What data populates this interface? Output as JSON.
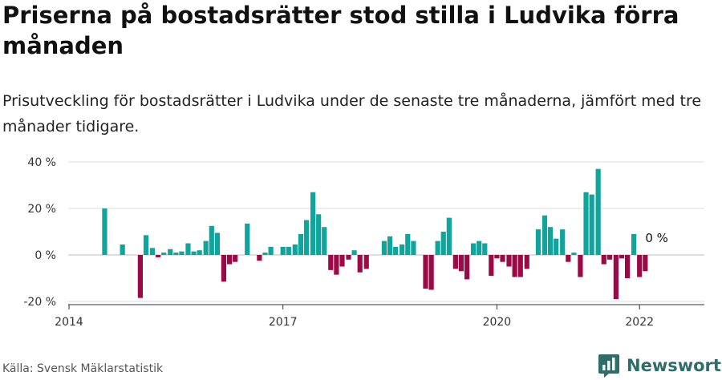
{
  "title": "Priserna på bostadsrätter stod stilla i Ludvika förra månaden",
  "subtitle": "Prisutveckling för bostadsrätter i Ludvika under de senaste tre månaderna, jämfört med tre månader tidigare.",
  "source": "Källa: Svensk Mäklarstatistik",
  "brand": "Newsworthy",
  "colors": {
    "positive": "#0fa49c",
    "negative": "#9b0a47",
    "brand": "#2f6d6a"
  },
  "chart_data": {
    "type": "bar",
    "unit": "%",
    "ylim": [
      -20,
      40
    ],
    "yticks": [
      {
        "value": 40,
        "label": "40 %"
      },
      {
        "value": 20,
        "label": "20 %"
      },
      {
        "value": 0,
        "label": "0 %"
      },
      {
        "value": -20,
        "label": "-20 %"
      }
    ],
    "xticks": [
      {
        "value": 2014.0,
        "label": "2014"
      },
      {
        "value": 2017.0,
        "label": "2017"
      },
      {
        "value": 2020.0,
        "label": "2020"
      },
      {
        "value": 2022.0,
        "label": "2022"
      }
    ],
    "grid": true,
    "last_value_label": "0 %",
    "points": [
      [
        2014.5,
        20
      ],
      [
        2014.58,
        0
      ],
      [
        2014.67,
        0
      ],
      [
        2014.75,
        4.5
      ],
      [
        2014.83,
        0
      ],
      [
        2014.92,
        0
      ],
      [
        2015.0,
        -18.5
      ],
      [
        2015.08,
        8.5
      ],
      [
        2015.17,
        3
      ],
      [
        2015.25,
        -1
      ],
      [
        2015.33,
        1
      ],
      [
        2015.42,
        2.5
      ],
      [
        2015.5,
        1
      ],
      [
        2015.58,
        1.5
      ],
      [
        2015.67,
        5
      ],
      [
        2015.75,
        1.5
      ],
      [
        2015.83,
        2
      ],
      [
        2015.92,
        6
      ],
      [
        2016.0,
        12.5
      ],
      [
        2016.08,
        9.5
      ],
      [
        2016.17,
        -11.5
      ],
      [
        2016.25,
        -4
      ],
      [
        2016.33,
        -3
      ],
      [
        2016.42,
        0
      ],
      [
        2016.5,
        13.5
      ],
      [
        2016.58,
        0
      ],
      [
        2016.67,
        -2.5
      ],
      [
        2016.75,
        1
      ],
      [
        2016.83,
        3.5
      ],
      [
        2016.92,
        0
      ],
      [
        2017.0,
        3.5
      ],
      [
        2017.08,
        3.5
      ],
      [
        2017.17,
        4.5
      ],
      [
        2017.25,
        9
      ],
      [
        2017.33,
        15
      ],
      [
        2017.42,
        27
      ],
      [
        2017.5,
        17.5
      ],
      [
        2017.58,
        12
      ],
      [
        2017.67,
        -6.5
      ],
      [
        2017.75,
        -8.5
      ],
      [
        2017.83,
        -5
      ],
      [
        2017.92,
        -2
      ],
      [
        2018.0,
        2
      ],
      [
        2018.08,
        -7.5
      ],
      [
        2018.17,
        -6
      ],
      [
        2018.25,
        0
      ],
      [
        2018.33,
        0
      ],
      [
        2018.42,
        6
      ],
      [
        2018.5,
        8
      ],
      [
        2018.58,
        3.5
      ],
      [
        2018.67,
        4.5
      ],
      [
        2018.75,
        9
      ],
      [
        2018.83,
        6
      ],
      [
        2018.92,
        0
      ],
      [
        2019.0,
        -14.5
      ],
      [
        2019.08,
        -15
      ],
      [
        2019.17,
        6
      ],
      [
        2019.25,
        10
      ],
      [
        2019.33,
        16
      ],
      [
        2019.42,
        -6
      ],
      [
        2019.5,
        -7
      ],
      [
        2019.58,
        -10.5
      ],
      [
        2019.67,
        5
      ],
      [
        2019.75,
        6
      ],
      [
        2019.83,
        5
      ],
      [
        2019.92,
        -9
      ],
      [
        2020.0,
        -1.5
      ],
      [
        2020.08,
        -3
      ],
      [
        2020.17,
        -5
      ],
      [
        2020.25,
        -9.5
      ],
      [
        2020.33,
        -9.5
      ],
      [
        2020.42,
        -6
      ],
      [
        2020.5,
        0
      ],
      [
        2020.58,
        11
      ],
      [
        2020.67,
        17
      ],
      [
        2020.75,
        12
      ],
      [
        2020.83,
        7
      ],
      [
        2020.92,
        11
      ],
      [
        2021.0,
        -3
      ],
      [
        2021.08,
        1
      ],
      [
        2021.17,
        -9.5
      ],
      [
        2021.25,
        27
      ],
      [
        2021.33,
        26
      ],
      [
        2021.42,
        37
      ],
      [
        2021.5,
        -4
      ],
      [
        2021.58,
        -2
      ],
      [
        2021.67,
        -19
      ],
      [
        2021.75,
        -1.5
      ],
      [
        2021.83,
        -10
      ],
      [
        2021.92,
        9
      ],
      [
        2022.0,
        -9.5
      ],
      [
        2022.08,
        -7
      ],
      [
        2022.17,
        0
      ]
    ]
  }
}
